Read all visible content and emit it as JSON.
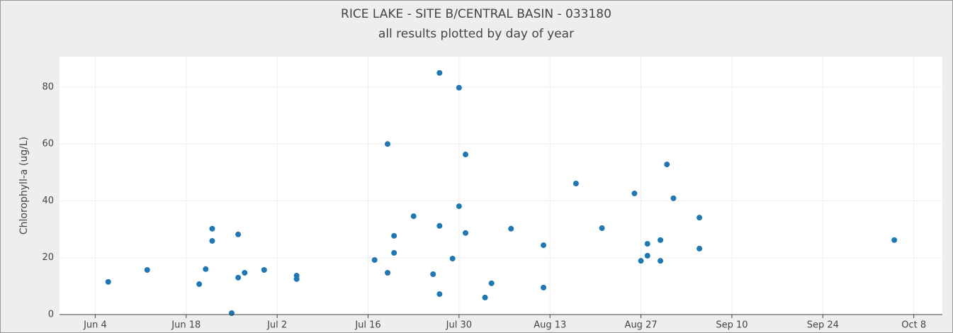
{
  "chart_data": {
    "type": "scatter",
    "title": "RICE LAKE - SITE B/CENTRAL BASIN - 033180",
    "subtitle": "all results plotted by day of year",
    "y_label": "Chlorophyll-a (ug/L)",
    "color": "#1f77b4",
    "grid": true,
    "xlim": [
      149.5,
      285.4
    ],
    "ylim": [
      0,
      90.7
    ],
    "xticks": [
      {
        "value": 155,
        "label": "Jun 4"
      },
      {
        "value": 169,
        "label": "Jun 18"
      },
      {
        "value": 183,
        "label": "Jul 2"
      },
      {
        "value": 197,
        "label": "Jul 16"
      },
      {
        "value": 211,
        "label": "Jul 30"
      },
      {
        "value": 225,
        "label": "Aug 13"
      },
      {
        "value": 239,
        "label": "Aug 27"
      },
      {
        "value": 253,
        "label": "Sep 10"
      },
      {
        "value": 267,
        "label": "Sep 24"
      },
      {
        "value": 281,
        "label": "Oct 8"
      }
    ],
    "yticks": [
      0,
      20,
      40,
      60,
      80
    ],
    "x": [
      157,
      163,
      171,
      172,
      173,
      173,
      176,
      177,
      177,
      178,
      181,
      186,
      186,
      198,
      200,
      200,
      201,
      201,
      204,
      207,
      208,
      208,
      208,
      210,
      211,
      211,
      212,
      212,
      215,
      216,
      219,
      224,
      224,
      229,
      233,
      238,
      239,
      240,
      240,
      242,
      242,
      243,
      244,
      248,
      248,
      278
    ],
    "values": [
      11.5,
      15.7,
      10.7,
      16,
      30.2,
      25.9,
      0.5,
      28.2,
      13,
      14.7,
      15.7,
      13.7,
      12.5,
      19.2,
      60,
      14.7,
      27.7,
      21.7,
      34.6,
      14.2,
      85,
      31.2,
      7.2,
      19.7,
      79.8,
      38.1,
      56.3,
      28.7,
      6,
      11,
      30.2,
      24.4,
      9.5,
      46.1,
      30.4,
      42.6,
      18.9,
      24.9,
      20.7,
      26.2,
      18.9,
      52.8,
      40.9,
      34.1,
      23.2,
      26.2
    ]
  }
}
